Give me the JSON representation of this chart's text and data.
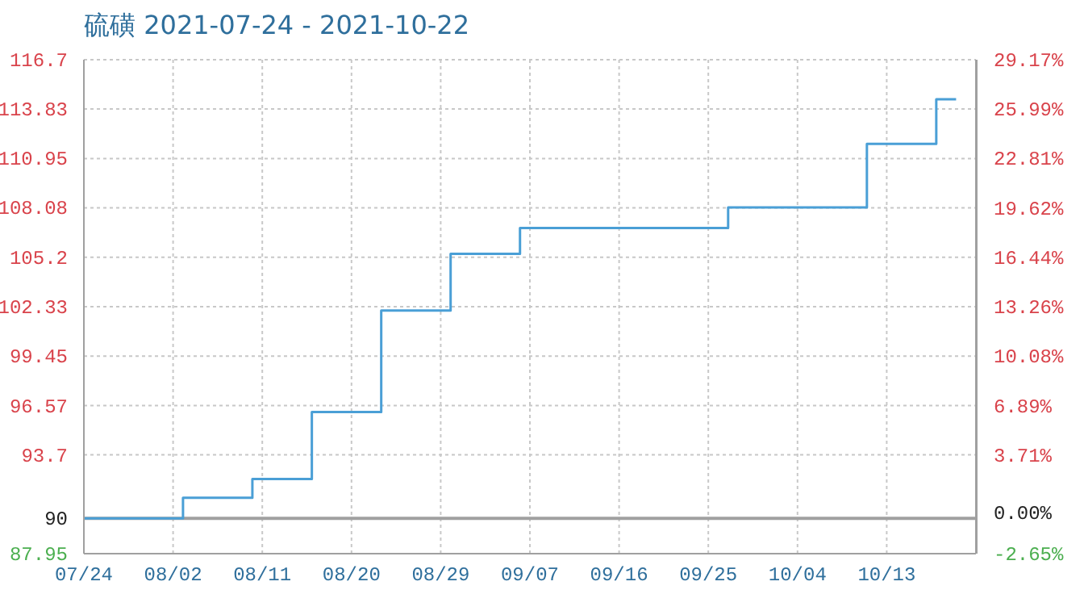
{
  "chart_data": {
    "type": "step",
    "title": "硫磺 2021-07-24 - 2021-10-22",
    "x": [
      "2021-07-24",
      "2021-08-03",
      "2021-08-10",
      "2021-08-16",
      "2021-08-23",
      "2021-08-30",
      "2021-09-06",
      "2021-09-27",
      "2021-10-11",
      "2021-10-18",
      "2021-10-20"
    ],
    "series": [
      {
        "color": "#4a9fd6",
        "values": [
          90,
          91.2,
          92.3,
          96.2,
          102.1,
          105.4,
          106.9,
          108.1,
          111.8,
          114.4,
          114.4
        ]
      }
    ],
    "xlim": [
      "2021-07-24",
      "2021-10-22"
    ],
    "xticks": [
      {
        "value": "2021-07-24",
        "label": "07/24"
      },
      {
        "value": "2021-08-02",
        "label": "08/02"
      },
      {
        "value": "2021-08-11",
        "label": "08/11"
      },
      {
        "value": "2021-08-20",
        "label": "08/20"
      },
      {
        "value": "2021-08-29",
        "label": "08/29"
      },
      {
        "value": "2021-09-07",
        "label": "09/07"
      },
      {
        "value": "2021-09-16",
        "label": "09/16"
      },
      {
        "value": "2021-09-25",
        "label": "09/25"
      },
      {
        "value": "2021-10-04",
        "label": "10/04"
      },
      {
        "value": "2021-10-13",
        "label": "10/13"
      }
    ],
    "ylim": [
      87.95,
      116.7
    ],
    "yticks": [
      87.95,
      90,
      93.7,
      96.57,
      99.45,
      102.33,
      105.2,
      108.08,
      110.95,
      113.83,
      116.7
    ],
    "y2lim": [
      -2.65,
      29.17
    ],
    "y2ticks": [
      {
        "value": -2.65,
        "label": "-2.65%"
      },
      {
        "value": 0,
        "label": "0.00%"
      },
      {
        "value": 3.71,
        "label": "3.71%"
      },
      {
        "value": 6.89,
        "label": "6.89%"
      },
      {
        "value": 10.08,
        "label": "10.08%"
      },
      {
        "value": 13.26,
        "label": "13.26%"
      },
      {
        "value": 16.44,
        "label": "16.44%"
      },
      {
        "value": 19.62,
        "label": "19.62%"
      },
      {
        "value": 22.81,
        "label": "22.81%"
      },
      {
        "value": 25.99,
        "label": "25.99%"
      },
      {
        "value": 29.17,
        "label": "29.17%"
      }
    ],
    "ref_lines": [
      {
        "axis": "y",
        "value": 90,
        "color": "#a0a0a0"
      }
    ],
    "grid": true,
    "marker": "none",
    "line_style": "solid"
  }
}
